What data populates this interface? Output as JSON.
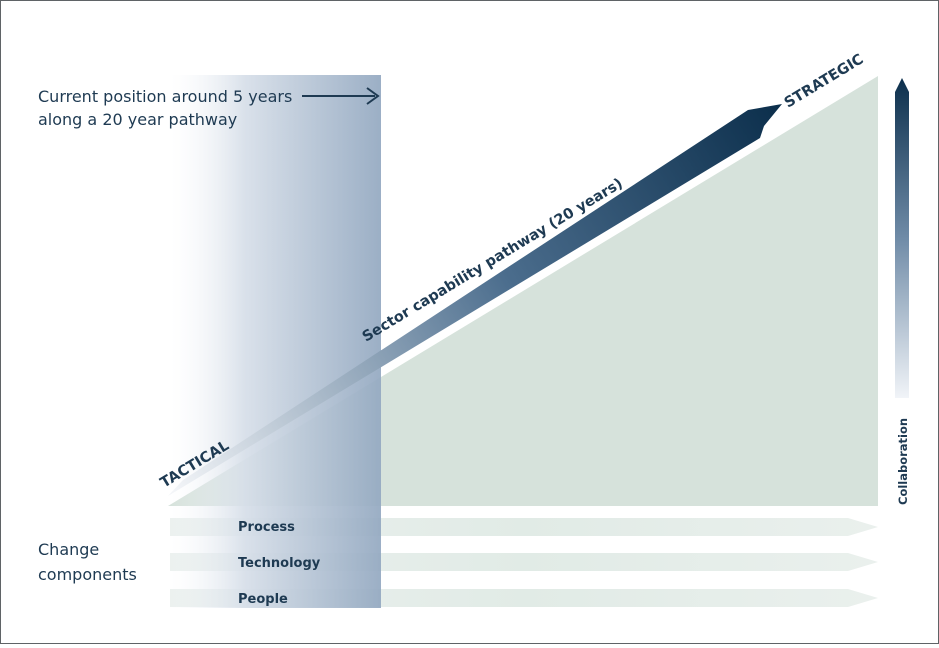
{
  "current_position": {
    "line1": "Current position around 5 years",
    "line2": "along a 20 year pathway"
  },
  "pathway": {
    "label": "Sector capability pathway (20 years)",
    "start_label": "TACTICAL",
    "end_label": "STRATEGIC"
  },
  "collaboration_label": "Collaboration",
  "change_components": {
    "line1": "Change",
    "line2": "components",
    "items": [
      {
        "label": "Process"
      },
      {
        "label": "Technology"
      },
      {
        "label": "People"
      }
    ]
  },
  "colors": {
    "navy": "#0c2f4c",
    "text": "#1e3a52",
    "triangle": "#d6e2db",
    "band_start": "#f5f7fa",
    "band_end": "#94a9c1"
  }
}
